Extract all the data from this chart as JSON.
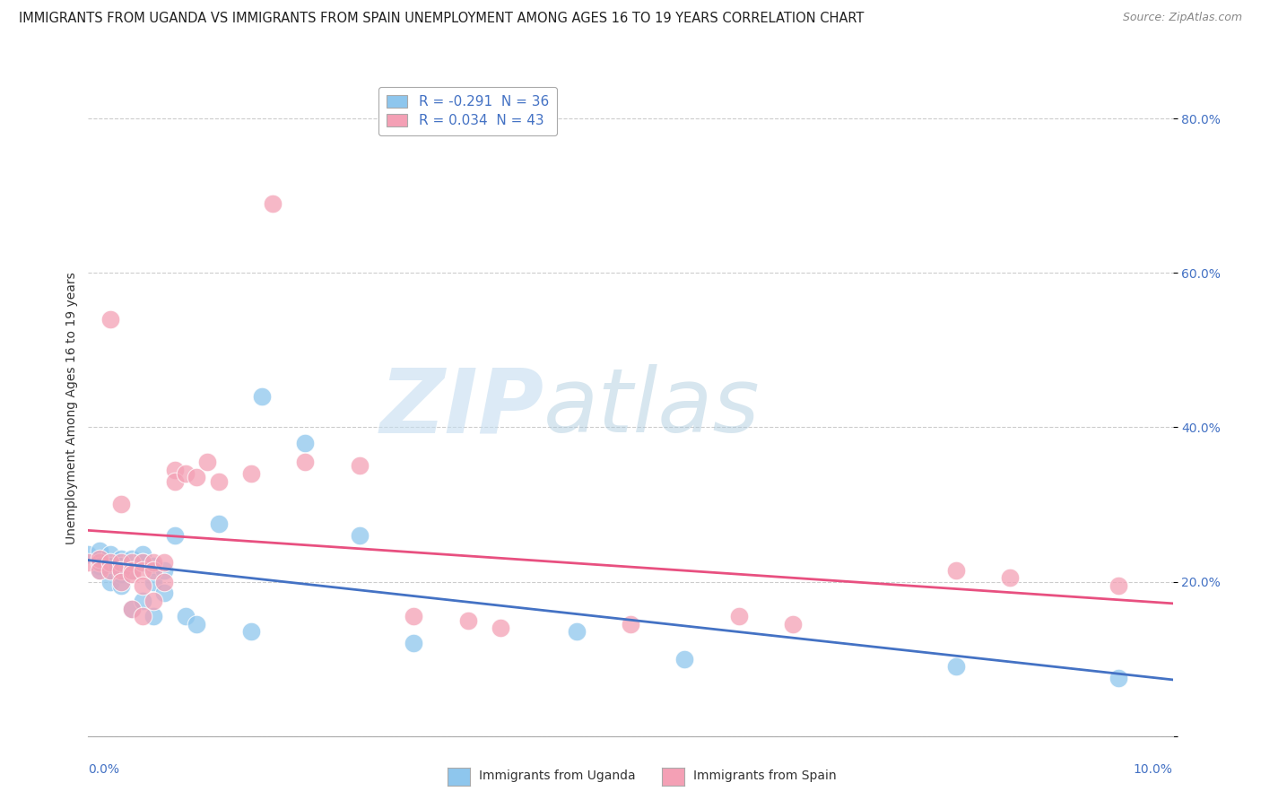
{
  "title": "IMMIGRANTS FROM UGANDA VS IMMIGRANTS FROM SPAIN UNEMPLOYMENT AMONG AGES 16 TO 19 YEARS CORRELATION CHART",
  "source": "Source: ZipAtlas.com",
  "ylabel": "Unemployment Among Ages 16 to 19 years",
  "xlim": [
    0.0,
    0.1
  ],
  "ylim": [
    0.0,
    0.85
  ],
  "yticks": [
    0.0,
    0.2,
    0.4,
    0.6,
    0.8
  ],
  "ytick_labels": [
    "",
    "20.0%",
    "40.0%",
    "60.0%",
    "80.0%"
  ],
  "xtick_left": "0.0%",
  "xtick_right": "10.0%",
  "legend_uganda": "R = -0.291  N = 36",
  "legend_spain": "R = 0.034  N = 43",
  "color_uganda": "#8EC6ED",
  "color_spain": "#F4A0B5",
  "trendline_color_uganda": "#4472C4",
  "trendline_color_spain": "#E85080",
  "background_color": "#FFFFFF",
  "grid_color": "#CCCCCC",
  "watermark_zip": "ZIP",
  "watermark_atlas": "atlas",
  "title_fontsize": 10.5,
  "source_fontsize": 9,
  "axis_label_fontsize": 10,
  "tick_fontsize": 10,
  "legend_fontsize": 11,
  "uganda_x": [
    0.0,
    0.001,
    0.001,
    0.001,
    0.002,
    0.002,
    0.002,
    0.002,
    0.003,
    0.003,
    0.003,
    0.003,
    0.004,
    0.004,
    0.004,
    0.005,
    0.005,
    0.005,
    0.006,
    0.006,
    0.006,
    0.007,
    0.007,
    0.008,
    0.009,
    0.01,
    0.012,
    0.015,
    0.016,
    0.02,
    0.025,
    0.03,
    0.045,
    0.055,
    0.08,
    0.095
  ],
  "uganda_y": [
    0.235,
    0.24,
    0.22,
    0.215,
    0.235,
    0.22,
    0.215,
    0.2,
    0.23,
    0.22,
    0.21,
    0.195,
    0.23,
    0.215,
    0.165,
    0.235,
    0.225,
    0.175,
    0.22,
    0.2,
    0.155,
    0.215,
    0.185,
    0.26,
    0.155,
    0.145,
    0.275,
    0.135,
    0.44,
    0.38,
    0.26,
    0.12,
    0.135,
    0.1,
    0.09,
    0.075
  ],
  "spain_x": [
    0.0,
    0.001,
    0.001,
    0.001,
    0.002,
    0.002,
    0.002,
    0.003,
    0.003,
    0.003,
    0.003,
    0.004,
    0.004,
    0.004,
    0.004,
    0.005,
    0.005,
    0.005,
    0.005,
    0.006,
    0.006,
    0.006,
    0.007,
    0.007,
    0.008,
    0.008,
    0.009,
    0.01,
    0.011,
    0.012,
    0.015,
    0.017,
    0.02,
    0.025,
    0.03,
    0.035,
    0.038,
    0.05,
    0.06,
    0.065,
    0.08,
    0.085,
    0.095
  ],
  "spain_y": [
    0.225,
    0.225,
    0.23,
    0.215,
    0.225,
    0.215,
    0.54,
    0.225,
    0.215,
    0.2,
    0.3,
    0.225,
    0.215,
    0.21,
    0.165,
    0.225,
    0.215,
    0.195,
    0.155,
    0.225,
    0.215,
    0.175,
    0.225,
    0.2,
    0.345,
    0.33,
    0.34,
    0.335,
    0.355,
    0.33,
    0.34,
    0.69,
    0.355,
    0.35,
    0.155,
    0.15,
    0.14,
    0.145,
    0.155,
    0.145,
    0.215,
    0.205,
    0.195
  ]
}
